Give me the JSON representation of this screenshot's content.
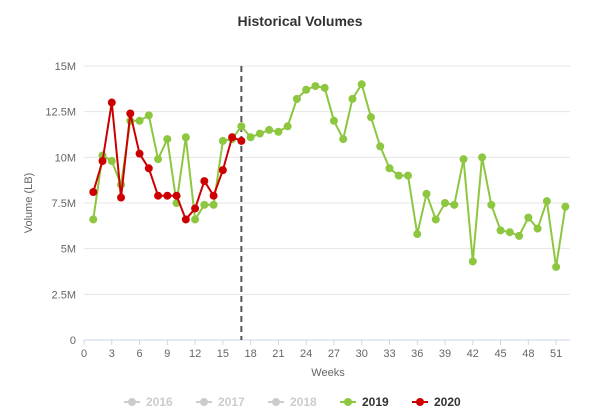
{
  "chart_data": {
    "type": "line",
    "title": "Historical Volumes",
    "xlabel": "Weeks",
    "ylabel": "Volume (LB)",
    "xlim": [
      0,
      52.5
    ],
    "ylim": [
      0,
      15000000
    ],
    "x_ticks": [
      0,
      3,
      6,
      9,
      12,
      15,
      18,
      21,
      24,
      27,
      30,
      33,
      36,
      39,
      42,
      45,
      48,
      51
    ],
    "y_ticks": [
      0,
      2500000,
      5000000,
      7500000,
      10000000,
      12500000,
      15000000
    ],
    "y_tick_labels": [
      "0",
      "2.5M",
      "5M",
      "7.5M",
      "10M",
      "12.5M",
      "15M"
    ],
    "grid": "horizontal",
    "marker_line_x": 17,
    "legend": {
      "position": "bottom",
      "items": [
        {
          "name": "2016",
          "color": "#cccccc",
          "active": false
        },
        {
          "name": "2017",
          "color": "#cccccc",
          "active": false
        },
        {
          "name": "2018",
          "color": "#cccccc",
          "active": false
        },
        {
          "name": "2019",
          "color": "#8dc63f",
          "active": true
        },
        {
          "name": "2020",
          "color": "#cc0000",
          "active": true
        }
      ]
    },
    "series": [
      {
        "name": "2019",
        "color": "#8dc63f",
        "x": [
          1,
          2,
          3,
          4,
          5,
          6,
          7,
          8,
          9,
          10,
          11,
          12,
          13,
          14,
          15,
          16,
          17,
          18,
          19,
          20,
          21,
          22,
          23,
          24,
          25,
          26,
          27,
          28,
          29,
          30,
          31,
          32,
          33,
          34,
          35,
          36,
          37,
          38,
          39,
          40,
          41,
          42,
          43,
          44,
          45,
          46,
          47,
          48,
          49,
          50,
          51,
          52
        ],
        "values": [
          6600000,
          10100000,
          9800000,
          8500000,
          12000000,
          12000000,
          12300000,
          9900000,
          11000000,
          7500000,
          11100000,
          6600000,
          7400000,
          7400000,
          10900000,
          11000000,
          11700000,
          11100000,
          11300000,
          11500000,
          11400000,
          11700000,
          13200000,
          13700000,
          13900000,
          13800000,
          12000000,
          11000000,
          13200000,
          14000000,
          12200000,
          10600000,
          9400000,
          9000000,
          9000000,
          5800000,
          8000000,
          6600000,
          7500000,
          7400000,
          9900000,
          4300000,
          10000000,
          7400000,
          6000000,
          5900000,
          5700000,
          6700000,
          6100000,
          7600000,
          4000000,
          7300000
        ]
      },
      {
        "name": "2020",
        "color": "#cc0000",
        "x": [
          1,
          2,
          3,
          4,
          5,
          6,
          7,
          8,
          9,
          10,
          11,
          12,
          13,
          14,
          15,
          16,
          17
        ],
        "values": [
          8100000,
          9800000,
          13000000,
          7800000,
          12400000,
          10200000,
          9400000,
          7900000,
          7900000,
          7900000,
          6600000,
          7200000,
          8700000,
          7900000,
          9300000,
          11100000,
          10900000
        ]
      }
    ]
  }
}
